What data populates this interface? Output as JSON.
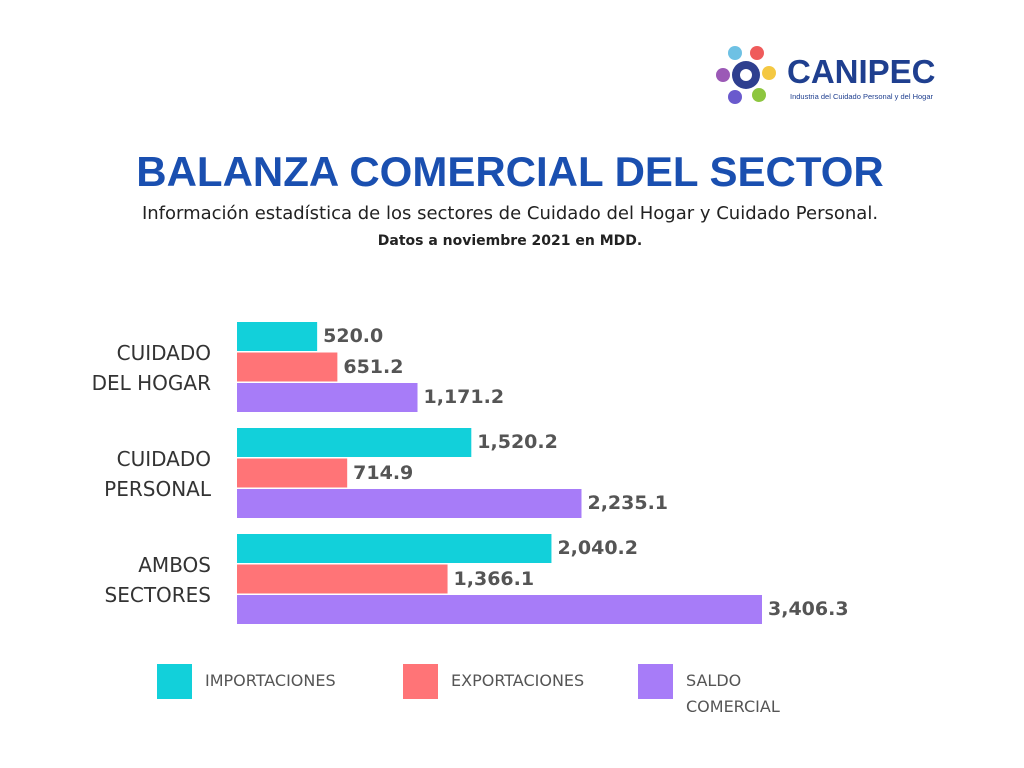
{
  "logo": {
    "name": "CANIPEC",
    "tagline": "Industria del Cuidado Personal y del Hogar"
  },
  "chart_data": {
    "type": "bar",
    "orientation": "horizontal",
    "title": "BALANZA COMERCIAL DEL SECTOR",
    "subtitle": "Información estadística de los sectores de Cuidado del Hogar y Cuidado Personal.",
    "note": "Datos a noviembre 2021 en MDD.",
    "categories": [
      "CUIDADO DEL HOGAR",
      "CUIDADO PERSONAL",
      "AMBOS SECTORES"
    ],
    "series": [
      {
        "name": "IMPORTACIONES",
        "color": "#12d0da",
        "values": [
          520.0,
          1520.2,
          2040.2
        ],
        "value_labels": [
          "520.0",
          "1,520.2",
          "2,040.2"
        ]
      },
      {
        "name": "EXPORTACIONES",
        "color": "#ff7477",
        "values": [
          651.2,
          714.9,
          1366.1
        ],
        "value_labels": [
          "651.2",
          "714.9",
          "1,366.1"
        ]
      },
      {
        "name": "SALDO COMERCIAL",
        "color": "#a77cf8",
        "values": [
          1171.2,
          2235.1,
          3406.3
        ],
        "value_labels": [
          "1,171.2",
          "2,235.1",
          "3,406.3"
        ]
      }
    ]
  }
}
